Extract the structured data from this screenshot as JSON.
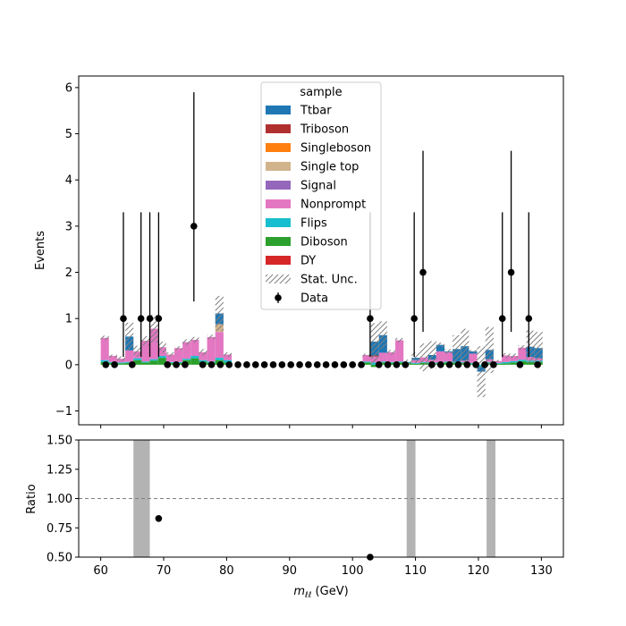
{
  "chart_data": [
    {
      "type": "bar",
      "stacked": true,
      "xlim": [
        56.5,
        133.5
      ],
      "ylim": [
        -1.3,
        6.25
      ],
      "ylabel": "Events",
      "yticks": [
        -1,
        0,
        1,
        2,
        3,
        4,
        5,
        6
      ],
      "bin_width": 1.3,
      "bin_centers": [
        60.65,
        61.95,
        63.25,
        64.55,
        65.85,
        67.15,
        68.45,
        69.75,
        71.05,
        72.35,
        73.65,
        74.95,
        76.25,
        77.55,
        78.85,
        80.15,
        102.25,
        103.55,
        104.85,
        106.15,
        107.45,
        108.75,
        110.05,
        111.35,
        112.65,
        113.95,
        115.25,
        116.55,
        117.85,
        119.15,
        120.45,
        121.75,
        123.05,
        124.35,
        125.65,
        126.95,
        128.25,
        129.55
      ],
      "legend": {
        "title": "sample",
        "placement": "upper center",
        "entries": [
          "Ttbar",
          "Triboson",
          "Singleboson",
          "Single top",
          "Signal",
          "Nonprompt",
          "Flips",
          "Diboson",
          "DY",
          "Stat. Unc.",
          "Data"
        ]
      },
      "colors": {
        "Ttbar": "#1f77b4",
        "Triboson": "#b03030",
        "Singleboson": "#ff7f0e",
        "Single top": "#d2b48c",
        "Signal": "#9467bd",
        "Nonprompt": "#e377c2",
        "Flips": "#17becf",
        "Diboson": "#2ca02c",
        "DY": "#d62728"
      },
      "series": [
        {
          "name": "DY",
          "values": [
            0,
            0,
            0,
            0,
            0,
            0,
            0,
            0,
            0,
            0,
            0,
            0,
            0,
            0,
            0,
            0,
            0,
            0,
            0,
            0,
            0,
            0,
            0,
            0,
            0,
            0,
            0,
            0,
            0,
            0,
            0,
            0,
            0,
            0,
            0,
            0,
            0,
            0
          ]
        },
        {
          "name": "Diboson",
          "values": [
            0.06,
            0.04,
            0.03,
            0.04,
            0.1,
            0.05,
            0.09,
            0.15,
            0.04,
            0.04,
            0.1,
            0.14,
            0.07,
            0.04,
            0.1,
            0.05,
            0.05,
            -0.05,
            0.05,
            0.04,
            0.05,
            0.04,
            0.02,
            0.04,
            0.03,
            0.03,
            0.05,
            0.04,
            0.04,
            0.02,
            0.0,
            0.04,
            0.02,
            0.03,
            0.05,
            0.08,
            0.06,
            0.06
          ]
        },
        {
          "name": "Flips",
          "values": [
            0.04,
            0.02,
            0.02,
            0.02,
            0.04,
            0.02,
            0.03,
            0.04,
            0.02,
            0.02,
            0.03,
            0.05,
            0.03,
            0.03,
            0.05,
            0.05,
            0.02,
            0.05,
            0.02,
            0.02,
            0.02,
            0.02,
            0.02,
            0.02,
            0.02,
            0.02,
            0.02,
            0.02,
            0.02,
            0.02,
            -0.05,
            0.02,
            0.02,
            0.03,
            0.03,
            0.03,
            0.03,
            0.03
          ]
        },
        {
          "name": "Nonprompt",
          "values": [
            0.48,
            0.13,
            0.08,
            0.25,
            0.15,
            0.45,
            0.66,
            0.19,
            0.16,
            0.3,
            0.36,
            0.35,
            0.17,
            0.53,
            0.56,
            0.12,
            0.14,
            0.13,
            0.19,
            0.21,
            0.46,
            0.0,
            0.06,
            0.1,
            0.06,
            0.24,
            0.2,
            0.0,
            0.03,
            0.2,
            0.0,
            0.06,
            0.04,
            0.14,
            0.11,
            0.26,
            0.08,
            0.05
          ]
        },
        {
          "name": "Signal",
          "values": [
            0,
            0,
            0,
            0,
            0,
            0,
            0,
            0,
            0,
            0,
            0,
            0,
            0,
            0,
            0,
            0,
            0,
            0,
            0,
            0,
            0,
            0,
            0,
            0,
            0,
            0,
            0,
            0,
            0,
            0,
            0,
            0,
            0,
            0,
            0,
            0,
            0,
            0
          ]
        },
        {
          "name": "Single top",
          "values": [
            0,
            0,
            0,
            0,
            0,
            0,
            0,
            0,
            0,
            0,
            0,
            0,
            0,
            0,
            0.17,
            0,
            0,
            0,
            0,
            0,
            0,
            0,
            0,
            0,
            0,
            0,
            0,
            0,
            0,
            0,
            0,
            0,
            0,
            0,
            0,
            0,
            0,
            0
          ]
        },
        {
          "name": "Singleboson",
          "values": [
            0,
            0,
            0,
            0,
            0,
            0,
            0,
            0,
            0,
            0,
            0,
            0,
            0,
            0,
            0,
            0,
            0,
            0,
            0,
            0,
            0,
            0,
            0,
            0,
            0,
            0,
            0,
            0,
            0,
            0,
            0,
            0,
            0,
            0,
            0,
            0,
            0,
            0
          ]
        },
        {
          "name": "Triboson",
          "values": [
            0,
            0,
            0,
            0,
            0,
            0,
            0,
            0,
            0,
            0,
            0,
            0,
            0,
            0,
            0,
            0,
            0,
            0.02,
            0,
            0,
            0,
            0,
            0,
            0,
            0,
            0,
            0,
            0,
            0,
            0,
            0,
            0,
            0,
            0,
            0,
            0,
            0,
            0
          ]
        },
        {
          "name": "Ttbar",
          "values": [
            0,
            0,
            0,
            0.3,
            0,
            0,
            0,
            0,
            0,
            0,
            0,
            0,
            0,
            0,
            0.23,
            0,
            0,
            0.3,
            0.38,
            0,
            0,
            0,
            0.05,
            0,
            0.1,
            0.14,
            0.02,
            0.28,
            0.31,
            0.05,
            -0.1,
            0.2,
            0,
            0,
            0,
            0,
            0.22,
            0.22
          ]
        }
      ],
      "stat_unc": [
        0.05,
        0.03,
        0.05,
        0.3,
        0.12,
        0.1,
        0.3,
        0.12,
        0.05,
        0.04,
        0.06,
        0.06,
        0.07,
        0.05,
        0.38,
        0.05,
        0.03,
        0.45,
        0.3,
        0.05,
        0.05,
        0.05,
        0.12,
        0.3,
        0.3,
        0.05,
        0.05,
        0.3,
        0.38,
        0.03,
        0.55,
        0.5,
        0.02,
        0.05,
        0.05,
        0.05,
        0.35,
        0.35
      ],
      "data": {
        "name": "Data",
        "x": [
          60.65,
          61.95,
          63.25,
          64.55,
          65.85,
          67.15,
          68.45,
          69.75,
          71.05,
          72.35,
          73.65,
          74.95,
          76.25,
          77.55,
          78.85,
          80.15,
          81.45,
          82.75,
          84.05,
          85.35,
          86.65,
          87.95,
          89.25,
          90.55,
          91.85,
          93.15,
          94.45,
          95.75,
          97.05,
          98.35,
          99.65,
          100.95,
          102.25,
          103.55,
          104.85,
          106.15,
          107.45,
          108.75,
          110.05,
          111.35,
          112.65,
          113.95,
          115.25,
          116.55,
          117.85,
          119.15,
          120.45,
          121.75,
          123.05,
          124.35,
          125.65,
          126.95,
          128.25,
          129.55
        ],
        "y": [
          0,
          0,
          1,
          0,
          1,
          1,
          1,
          0,
          0,
          0,
          3,
          0,
          0,
          0,
          0,
          0,
          0,
          0,
          0,
          0,
          0,
          0,
          0,
          0,
          0,
          0,
          0,
          0,
          0,
          0,
          0,
          0,
          1,
          0,
          0,
          0,
          0,
          1,
          2,
          0,
          0,
          0,
          0,
          0,
          0,
          0,
          0,
          0,
          1,
          2,
          0,
          1,
          0,
          0
        ],
        "points_x": [
          60.8,
          62.2,
          63.6,
          65.0,
          66.4,
          67.8,
          69.2,
          70.6,
          72.0,
          73.4,
          74.8,
          76.2,
          77.6,
          79.0,
          80.4,
          81.8,
          83.2,
          84.6,
          86.0,
          87.4,
          88.8,
          90.2,
          91.6,
          93.0,
          94.4,
          95.8,
          97.2,
          98.6,
          100.0,
          101.4,
          102.8,
          104.2,
          105.6,
          107.0,
          108.4,
          109.8,
          111.2,
          112.6,
          114.0,
          115.4,
          116.8,
          118.2,
          119.6,
          121.0,
          122.4,
          123.8,
          125.2,
          126.6,
          128.0,
          129.4
        ],
        "points_y": [
          0,
          0,
          1,
          0,
          1,
          1,
          1,
          0,
          0,
          0,
          3,
          0,
          0,
          0,
          0,
          0,
          0,
          0,
          0,
          0,
          0,
          0,
          0,
          0,
          0,
          0,
          0,
          0,
          0,
          0,
          1,
          0,
          0,
          0,
          0,
          1,
          2,
          0,
          0,
          0,
          0,
          0,
          0,
          0,
          0,
          1,
          2,
          0,
          1,
          0
        ],
        "err_up": [
          0,
          0,
          2.3,
          0,
          2.3,
          2.3,
          2.3,
          0,
          0,
          0,
          2.9,
          0,
          0,
          0,
          0,
          0,
          0,
          0,
          0,
          0,
          0,
          0,
          0,
          0,
          0,
          0,
          0,
          0,
          0,
          0,
          2.3,
          0,
          0,
          0,
          0,
          2.3,
          2.63,
          0,
          0,
          0,
          0,
          0,
          0,
          0,
          0,
          2.3,
          2.63,
          0,
          2.3,
          0
        ],
        "err_dn": [
          0,
          0,
          0.83,
          0,
          0.83,
          0.83,
          0.83,
          0,
          0,
          0,
          1.63,
          0,
          0,
          0,
          0,
          0,
          0,
          0,
          0,
          0,
          0,
          0,
          0,
          0,
          0,
          0,
          0,
          0,
          0,
          0,
          0.83,
          0,
          0,
          0,
          0,
          0.83,
          1.29,
          0,
          0,
          0,
          0,
          0,
          0,
          0,
          0,
          0.83,
          1.29,
          0,
          0.83,
          0
        ]
      }
    },
    {
      "type": "scatter",
      "xlabel": "m_{ℓℓ} (GeV)",
      "ylabel": "Ratio",
      "xlim": [
        56.5,
        133.5
      ],
      "ylim": [
        0.5,
        1.5
      ],
      "xticks": [
        60,
        70,
        80,
        90,
        100,
        110,
        120,
        130
      ],
      "yticks": [
        0.5,
        0.75,
        1.0,
        1.25,
        1.5
      ],
      "ytick_labels": [
        "0.50",
        "0.75",
        "1.00",
        "1.25",
        "1.50"
      ],
      "reference_line": 1.0,
      "unc_bands": [
        [
          65.2,
          67.8
        ],
        [
          108.6,
          110.0
        ],
        [
          121.3,
          122.7
        ]
      ],
      "points": [
        {
          "x": 69.2,
          "y": 0.83
        },
        {
          "x": 102.8,
          "y": 0.5
        }
      ]
    }
  ]
}
